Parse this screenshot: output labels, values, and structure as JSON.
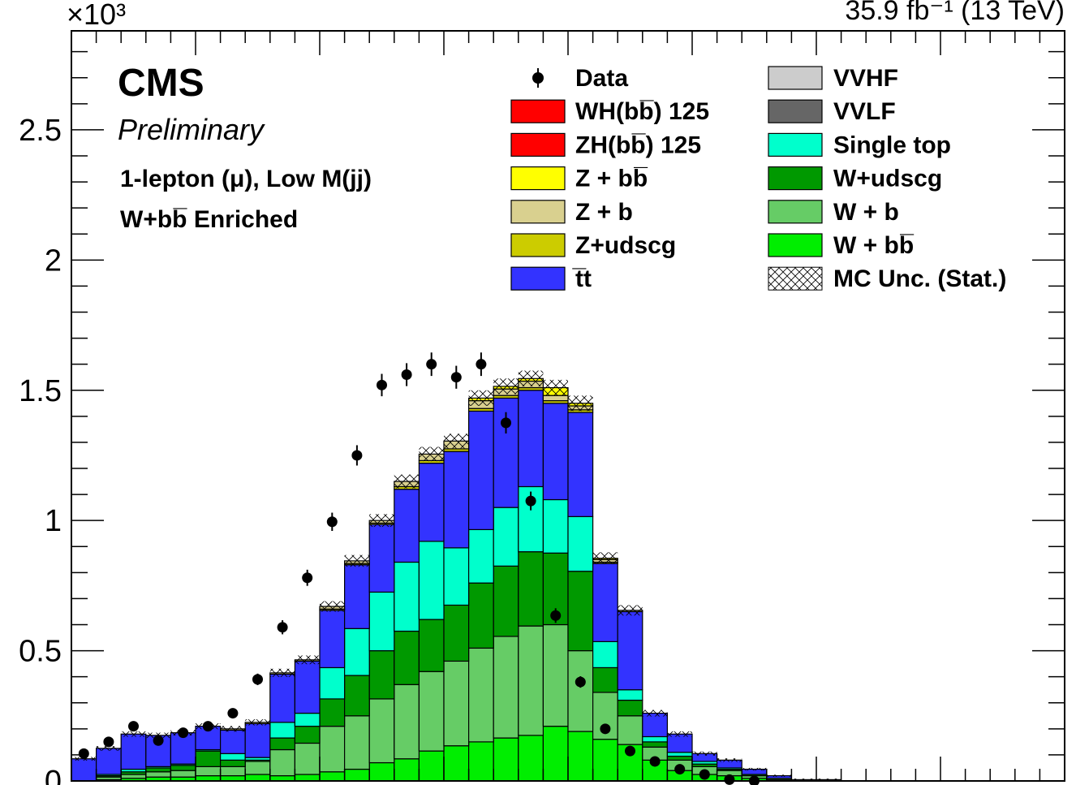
{
  "chart_data": {
    "type": "stacked-histogram",
    "experiment": "CMS",
    "status": "Preliminary",
    "lumi_label": "35.9 fb⁻¹ (13 TeV)",
    "y_multiplier": "×10³",
    "category_label": "1-lepton (μ), Low M(jj)",
    "region_label": "W+bb̅ Enriched",
    "ylim": [
      0,
      2.88
    ],
    "y_ticks": [
      "0",
      "0.5",
      "1",
      "1.5",
      "2",
      "2.5"
    ],
    "n_bins": 40,
    "stack_order": [
      "W + bb̅",
      "W + b",
      "W+udscg",
      "Single top",
      "t̅t",
      "Z+udscg",
      "Z + b",
      "Z + bb̅"
    ],
    "series": [
      {
        "name": "W + bb̅",
        "color": "#00ee00",
        "values": [
          0,
          0.005,
          0.01,
          0.015,
          0.015,
          0.02,
          0.02,
          0.025,
          0.02,
          0.025,
          0.035,
          0.045,
          0.07,
          0.085,
          0.115,
          0.135,
          0.15,
          0.165,
          0.175,
          0.21,
          0.19,
          0.16,
          0.14,
          0.08,
          0.04,
          0.025,
          0.02,
          0.01,
          0.005,
          0,
          0,
          0,
          0,
          0,
          0,
          0,
          0,
          0,
          0,
          0
        ]
      },
      {
        "name": "W + b",
        "color": "#66cc66",
        "values": [
          0,
          0.01,
          0.015,
          0.02,
          0.025,
          0.035,
          0.035,
          0.05,
          0.1,
          0.12,
          0.175,
          0.205,
          0.245,
          0.285,
          0.305,
          0.325,
          0.36,
          0.39,
          0.42,
          0.39,
          0.31,
          0.18,
          0.11,
          0.05,
          0.04,
          0.03,
          0.02,
          0.01,
          0.005,
          0,
          0,
          0,
          0,
          0,
          0,
          0,
          0,
          0,
          0,
          0
        ]
      },
      {
        "name": "W+udscg",
        "color": "#009900",
        "values": [
          0,
          0.005,
          0.01,
          0.015,
          0.02,
          0.06,
          0.025,
          0.005,
          0.045,
          0.065,
          0.105,
          0.155,
          0.185,
          0.205,
          0.2,
          0.215,
          0.25,
          0.27,
          0.285,
          0.275,
          0.305,
          0.095,
          0.06,
          0.02,
          0.015,
          0.01,
          0.005,
          0.005,
          0,
          0,
          0,
          0,
          0,
          0,
          0,
          0,
          0,
          0,
          0,
          0
        ]
      },
      {
        "name": "Single top",
        "color": "#00ffcc",
        "values": [
          0,
          0.005,
          0.01,
          0.005,
          0.005,
          0.005,
          0.025,
          0.01,
          0.06,
          0.05,
          0.12,
          0.18,
          0.225,
          0.265,
          0.3,
          0.22,
          0.205,
          0.225,
          0.25,
          0.205,
          0.21,
          0.1,
          0.04,
          0.02,
          0.015,
          0.01,
          0.005,
          0,
          0,
          0,
          0,
          0,
          0,
          0,
          0,
          0,
          0,
          0,
          0,
          0
        ]
      },
      {
        "name": "t̅t",
        "color": "#3333ff",
        "values": [
          0.085,
          0.1,
          0.135,
          0.12,
          0.12,
          0.09,
          0.09,
          0.13,
          0.185,
          0.2,
          0.22,
          0.245,
          0.26,
          0.28,
          0.3,
          0.37,
          0.455,
          0.42,
          0.37,
          0.37,
          0.4,
          0.3,
          0.3,
          0.09,
          0.07,
          0.03,
          0.03,
          0.02,
          0.01,
          0.005,
          0.005,
          0,
          0,
          0,
          0,
          0,
          0,
          0,
          0,
          0
        ]
      },
      {
        "name": "Z+udscg",
        "color": "#cccc00",
        "values": [
          0,
          0,
          0,
          0,
          0,
          0,
          0,
          0,
          0,
          0,
          0.005,
          0.005,
          0.005,
          0.01,
          0.01,
          0.01,
          0.01,
          0.01,
          0.01,
          0.01,
          0.01,
          0.005,
          0,
          0,
          0,
          0,
          0,
          0,
          0,
          0,
          0,
          0,
          0,
          0,
          0,
          0,
          0,
          0,
          0,
          0
        ]
      },
      {
        "name": "Z + b",
        "color": "#d9d08f",
        "values": [
          0,
          0,
          0,
          0,
          0,
          0,
          0.005,
          0.005,
          0.005,
          0.005,
          0.01,
          0.01,
          0.01,
          0.02,
          0.025,
          0.03,
          0.03,
          0.025,
          0.025,
          0.02,
          0.015,
          0.01,
          0.005,
          0,
          0,
          0,
          0,
          0,
          0,
          0,
          0,
          0,
          0,
          0,
          0,
          0,
          0,
          0,
          0,
          0
        ]
      },
      {
        "name": "Z + bb̅",
        "color": "#ffff00",
        "values": [
          0,
          0,
          0,
          0,
          0,
          0,
          0,
          0,
          0,
          0,
          0,
          0,
          0,
          0,
          0,
          0,
          0.01,
          0.01,
          0.01,
          0.03,
          0.01,
          0.005,
          0,
          0,
          0,
          0,
          0,
          0,
          0,
          0,
          0,
          0,
          0,
          0,
          0,
          0,
          0,
          0,
          0,
          0
        ]
      }
    ],
    "data_points": {
      "name": "Data",
      "values": [
        0.105,
        0.15,
        0.21,
        0.155,
        0.185,
        0.21,
        0.26,
        0.39,
        0.59,
        0.78,
        0.995,
        1.25,
        1.52,
        1.56,
        1.6,
        1.55,
        1.6,
        1.375,
        1.075,
        0.635,
        0.38,
        0.2,
        0.115,
        0.075,
        0.045,
        0.025,
        0.005,
        0.0,
        null,
        null,
        null,
        null,
        null,
        null,
        null,
        null,
        null,
        null,
        null,
        null
      ],
      "errors": [
        0.012,
        0.014,
        0.016,
        0.014,
        0.015,
        0.016,
        0.018,
        0.022,
        0.027,
        0.031,
        0.035,
        0.039,
        0.043,
        0.044,
        0.045,
        0.044,
        0.045,
        0.041,
        0.036,
        0.028,
        0.022,
        0.016,
        0.012,
        0.01,
        0.008,
        0.006,
        0.003,
        0.0,
        null,
        null,
        null,
        null,
        null,
        null,
        null,
        null,
        null,
        null,
        null,
        null
      ]
    },
    "mc_stat_uncertainty": 0.03,
    "legend": {
      "placement": "top-right",
      "left_column": [
        {
          "label": "Data",
          "kind": "marker",
          "color": "#000000"
        },
        {
          "label": "WH(bb̅) 125",
          "kind": "box",
          "color": "#ff0000"
        },
        {
          "label": "ZH(bb̅) 125",
          "kind": "box",
          "color": "#ff0000"
        },
        {
          "label": "Z + bb̅",
          "kind": "box",
          "color": "#ffff00"
        },
        {
          "label": "Z + b",
          "kind": "box",
          "color": "#d9d08f"
        },
        {
          "label": "Z+udscg",
          "kind": "box",
          "color": "#cccc00"
        },
        {
          "label": "t̅t",
          "kind": "box",
          "color": "#3333ff"
        }
      ],
      "right_column": [
        {
          "label": "VVHF",
          "kind": "box",
          "color": "#cccccc"
        },
        {
          "label": "VVLF",
          "kind": "box",
          "color": "#666666"
        },
        {
          "label": "Single top",
          "kind": "box",
          "color": "#00ffcc"
        },
        {
          "label": "W+udscg",
          "kind": "box",
          "color": "#009900"
        },
        {
          "label": "W + b",
          "kind": "box",
          "color": "#66cc66"
        },
        {
          "label": "W + bb̅",
          "kind": "box",
          "color": "#00ee00"
        },
        {
          "label": "MC Unc. (Stat.)",
          "kind": "hatch",
          "color": "#000000"
        }
      ]
    }
  }
}
